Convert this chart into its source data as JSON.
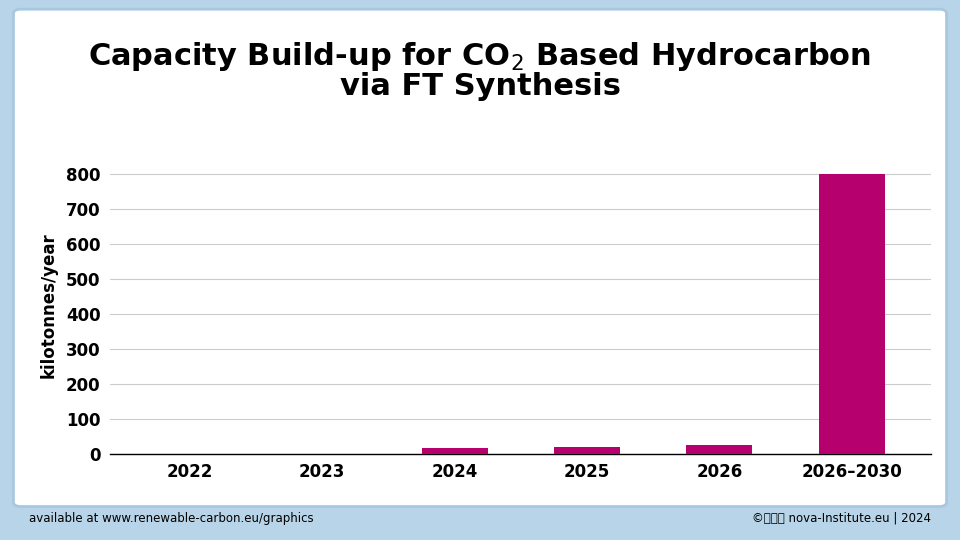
{
  "categories": [
    "2022",
    "2023",
    "2024",
    "2025",
    "2026",
    "2026–2030"
  ],
  "values": [
    0,
    0,
    15,
    20,
    25,
    800
  ],
  "bar_color": "#b5006e",
  "title_part1": "Capacity Build-up for CO",
  "title_sub": "2",
  "title_part2": " Based Hydrocarbon",
  "title_line2": "via FT Synthesis",
  "ylabel": "kilotonnes/year",
  "ylim": [
    0,
    850
  ],
  "yticks": [
    0,
    100,
    200,
    300,
    400,
    500,
    600,
    700,
    800
  ],
  "background_outer": "#b8d4e8",
  "background_inner": "#ffffff",
  "footer_left": "available at www.renewable-carbon.eu/graphics",
  "footer_right": "©ⓓⓈⓨ nova-Institute.eu | 2024",
  "title_fontsize": 22,
  "axis_label_fontsize": 12,
  "tick_fontsize": 12,
  "footer_fontsize": 8.5
}
